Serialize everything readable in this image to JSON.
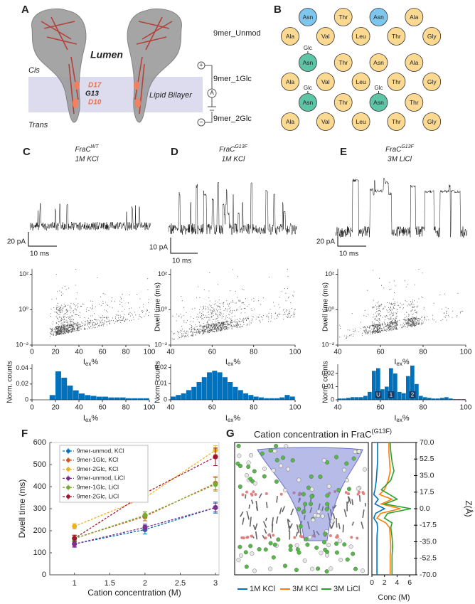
{
  "panel_labels": [
    "A",
    "B",
    "C",
    "D",
    "E",
    "F",
    "G"
  ],
  "panel_a": {
    "lumen": "Lumen",
    "cis": "Cis",
    "trans": "Trans",
    "bilayer": "Lipid Bilayer",
    "d17": "D17",
    "g13": "G13",
    "d10": "D10",
    "plus": "+",
    "ammeter": "A",
    "minus": "−"
  },
  "panel_b": {
    "rows": [
      {
        "label": "9mer_Unmod",
        "residues": [
          {
            "name": "Ala",
            "color": "#fcd991"
          },
          {
            "name": "Asn",
            "color": "#7dc6ee"
          },
          {
            "name": "Val",
            "color": "#fcd991"
          },
          {
            "name": "Thr",
            "color": "#fcd991"
          },
          {
            "name": "Leu",
            "color": "#fcd991"
          },
          {
            "name": "Asn",
            "color": "#7dc6ee"
          },
          {
            "name": "Thr",
            "color": "#fcd991"
          },
          {
            "name": "Ala",
            "color": "#fcd991"
          },
          {
            "name": "Gly",
            "color": "#fcd991"
          }
        ]
      },
      {
        "label": "9mer_1Glc",
        "residues": [
          {
            "name": "Ala",
            "color": "#fcd991"
          },
          {
            "name": "Asn",
            "color": "#5ec4a6",
            "glycan": "Glc"
          },
          {
            "name": "Val",
            "color": "#fcd991"
          },
          {
            "name": "Thr",
            "color": "#fcd991"
          },
          {
            "name": "Leu",
            "color": "#fcd991"
          },
          {
            "name": "Asn",
            "color": "#fcd991"
          },
          {
            "name": "Thr",
            "color": "#fcd991"
          },
          {
            "name": "Ala",
            "color": "#fcd991"
          },
          {
            "name": "Gly",
            "color": "#fcd991"
          }
        ]
      },
      {
        "label": "9mer_2Glc",
        "residues": [
          {
            "name": "Ala",
            "color": "#fcd991"
          },
          {
            "name": "Asn",
            "color": "#5ec4a6",
            "glycan": "Glc"
          },
          {
            "name": "Val",
            "color": "#fcd991"
          },
          {
            "name": "Thr",
            "color": "#fcd991"
          },
          {
            "name": "Leu",
            "color": "#fcd991"
          },
          {
            "name": "Asn",
            "color": "#5ec4a6",
            "glycan": "Glc"
          },
          {
            "name": "Thr",
            "color": "#fcd991"
          },
          {
            "name": "Thr",
            "color": "#fcd991"
          },
          {
            "name": "Gly",
            "color": "#fcd991"
          }
        ]
      }
    ]
  },
  "recordings": [
    {
      "title": "FraC",
      "title_sup": "WT",
      "condition": "1M KCl",
      "scale_current": "20 pA",
      "scale_time": "10 ms",
      "scatter": {
        "log_y": true,
        "xlim": [
          0,
          100
        ],
        "xticks": [
          0,
          20,
          40,
          60,
          80,
          100
        ],
        "ylim": [
          0.01,
          200
        ],
        "yticks": [
          {
            "value": 0.01,
            "label": "10⁻²"
          },
          {
            "value": 1,
            "label": "10⁰"
          },
          {
            "value": 100,
            "label": "10²"
          }
        ],
        "xlabel": {
          "main": "I",
          "sub": "ex",
          "suffix": "%"
        }
      }
    },
    {
      "title": "FraC",
      "title_sup": "G13F",
      "condition": "1M KCl",
      "scale_current": "10 pA",
      "scale_time": "10 ms",
      "scatter": {
        "log_y": true,
        "ylabel": "Dwell time (ms)",
        "xlim": [
          40,
          100
        ],
        "xticks": [
          40,
          60,
          80,
          100
        ],
        "ylim": [
          0.01,
          200
        ],
        "yticks": [
          {
            "value": 0.01,
            "label": "10⁻²"
          },
          {
            "value": 1,
            "label": "10⁰"
          },
          {
            "value": 100,
            "label": "10²"
          }
        ],
        "xlabel": {
          "main": "I",
          "sub": "ex",
          "suffix": "%"
        }
      }
    },
    {
      "title": "FraC",
      "title_sup": "G13F",
      "condition": "3M LiCl",
      "scale_current": "20 pA",
      "scale_time": "10 ms",
      "scatter": {
        "log_y": true,
        "ylabel": "Dwell time (ms)",
        "xlim": [
          40,
          100
        ],
        "xticks": [
          40,
          60,
          80,
          100
        ],
        "ylim": [
          0.01,
          200
        ],
        "yticks": [
          {
            "value": 0.01,
            "label": "10⁻²"
          },
          {
            "value": 1,
            "label": "10⁰"
          },
          {
            "value": 100,
            "label": "10²"
          }
        ],
        "xlabel": {
          "main": "I",
          "sub": "ex",
          "suffix": "%"
        }
      }
    }
  ],
  "chart_data": [
    {
      "type": "histogram",
      "ylabel": "Norm. counts",
      "xlabel": {
        "main": "I",
        "sub": "ex",
        "suffix": "%"
      },
      "color": "#0072bd",
      "bins": [
        0,
        5,
        10,
        15,
        20,
        25,
        30,
        35,
        40,
        45,
        50,
        55,
        60,
        65,
        70,
        75,
        80,
        85,
        90,
        95,
        100
      ],
      "values": [
        0,
        0,
        0,
        0.006,
        0.036,
        0.028,
        0.018,
        0.012,
        0.008,
        0.006,
        0.005,
        0.004,
        0.004,
        0.003,
        0.003,
        0.003,
        0.002,
        0.002,
        0.002,
        0.002
      ],
      "xlim": [
        0,
        100
      ],
      "xticks": [
        0,
        20,
        40,
        60,
        80,
        100
      ],
      "ylim": [
        0,
        0.045
      ],
      "yticks": [
        0,
        0.02,
        0.04
      ]
    },
    {
      "type": "histogram",
      "ylabel": "Norm. counts",
      "xlabel": {
        "main": "I",
        "sub": "ex",
        "suffix": "%"
      },
      "color": "#0072bd",
      "bins": [
        40,
        42.5,
        45,
        47.5,
        50,
        52.5,
        55,
        57.5,
        60,
        62.5,
        65,
        67.5,
        70,
        72.5,
        75,
        77.5,
        80,
        82.5,
        85,
        87.5,
        90,
        92.5,
        95,
        97.5,
        100
      ],
      "values": [
        0.002,
        0.003,
        0.004,
        0.006,
        0.008,
        0.011,
        0.014,
        0.017,
        0.018,
        0.017,
        0.014,
        0.011,
        0.008,
        0.006,
        0.004,
        0.003,
        0.002,
        0.0015,
        0.001,
        0.001,
        0.001,
        0.0015,
        0.003,
        0.002
      ],
      "xlim": [
        40,
        100
      ],
      "xticks": [
        40,
        60,
        80,
        100
      ],
      "ylim": [
        0,
        0.022
      ],
      "yticks": [
        0,
        0.01,
        0.02
      ]
    },
    {
      "type": "histogram",
      "ylabel": "Norm. counts",
      "xlabel": {
        "main": "I",
        "sub": "ex",
        "suffix": "%"
      },
      "color": "#0072bd",
      "bins": [
        40,
        42,
        44,
        46,
        48,
        50,
        52,
        54,
        56,
        58,
        60,
        62,
        64,
        66,
        68,
        70,
        72,
        74,
        76,
        78,
        80,
        82,
        84,
        86,
        88,
        90,
        92,
        94,
        96,
        98,
        100
      ],
      "values": [
        0.001,
        0.001,
        0.0015,
        0.002,
        0.002,
        0.002,
        0.003,
        0.006,
        0.022,
        0.024,
        0.008,
        0.01,
        0.024,
        0.02,
        0.006,
        0.005,
        0.018,
        0.026,
        0.012,
        0.003,
        0.002,
        0.0015,
        0.001,
        0.001,
        0.0015,
        0.002,
        0.001,
        0.0005,
        0.0005,
        0.0005
      ],
      "annotations": [
        "U",
        "1",
        "2"
      ],
      "xlim": [
        40,
        100
      ],
      "xticks": [
        40,
        60,
        80,
        100
      ],
      "ylim": [
        0,
        0.027
      ],
      "yticks": [
        0,
        0.01,
        0.02
      ]
    },
    {
      "type": "line",
      "xlabel": "Cation concentration (M)",
      "ylabel": "Dwell time (ms)",
      "x": [
        1,
        2,
        3
      ],
      "xlim": [
        0.65,
        3.05
      ],
      "xticks": [
        1,
        1.5,
        2,
        2.5,
        3
      ],
      "ylim": [
        0,
        600
      ],
      "yticks": [
        0,
        100,
        200,
        300,
        400,
        500,
        600
      ],
      "series": [
        {
          "name": "9mer-unmod, KCl",
          "color": "#0072bd",
          "values": [
            140,
            205,
            305
          ],
          "errors": [
            15,
            20,
            25
          ]
        },
        {
          "name": "9mer-1Glc, KCl",
          "color": "#d95319",
          "values": [
            165,
            265,
            415
          ],
          "errors": [
            15,
            20,
            30
          ]
        },
        {
          "name": "9mer-2Glc, KCl",
          "color": "#edb120",
          "values": [
            220,
            350,
            565
          ],
          "errors": [
            12,
            20,
            20
          ]
        },
        {
          "name": "9mer-unmod, LiCl",
          "color": "#7e2f8e",
          "values": [
            140,
            215,
            305
          ],
          "errors": [
            12,
            15,
            20
          ]
        },
        {
          "name": "9mer-1Glc, LiCl",
          "color": "#77ac30",
          "values": [
            165,
            270,
            410
          ],
          "errors": [
            12,
            15,
            30
          ]
        },
        {
          "name": "9mer-2Glc, LiCl",
          "color": "#a2142f",
          "values": [
            165,
            370,
            535
          ],
          "errors": [
            15,
            15,
            40
          ]
        }
      ]
    },
    {
      "type": "profile",
      "title": "Cation concentration in FraC",
      "title_sup": "(G13F)",
      "xlabel": "Conc (M)",
      "ylabel": "Z(Å)",
      "y": [
        70,
        60,
        50,
        40,
        30,
        20,
        15,
        10,
        5,
        0,
        -5,
        -10,
        -15,
        -20,
        -30,
        -40,
        -50,
        -60,
        -70
      ],
      "ylim": [
        -70,
        70
      ],
      "yticks": [
        {
          "value": 70,
          "label": "70.0"
        },
        52.5,
        {
          "value": 35,
          "label": "35.0"
        },
        17.5,
        {
          "value": 0,
          "label": "0.0"
        },
        -17.5,
        {
          "value": -35,
          "label": "-35.0"
        },
        -52.5,
        {
          "value": -70,
          "label": "-70.0"
        }
      ],
      "xlim": [
        0,
        7
      ],
      "xticks": [
        0,
        2,
        4,
        6
      ],
      "series": [
        {
          "name": "1M KCl",
          "color": "#0072bd",
          "values": [
            0.9,
            0.9,
            0.9,
            0.8,
            0.7,
            0.5,
            0.3,
            1.0,
            0.5,
            2.0,
            0.6,
            0.3,
            0.8,
            0.9,
            0.8,
            0.8,
            0.8,
            0.8,
            0.8
          ]
        },
        {
          "name": "3M KCl",
          "color": "#ff7f0e",
          "values": [
            2.7,
            2.7,
            2.8,
            2.9,
            2.6,
            2.0,
            1.2,
            3.2,
            1.5,
            4.5,
            1.4,
            0.8,
            2.2,
            2.8,
            2.9,
            3.0,
            2.9,
            2.9,
            2.9
          ]
        },
        {
          "name": "3M LiCl",
          "color": "#2ca02c",
          "values": [
            2.9,
            3.0,
            3.2,
            3.5,
            3.0,
            1.5,
            2.8,
            4.0,
            2.0,
            6.2,
            2.5,
            2.0,
            3.2,
            3.0,
            3.2,
            3.3,
            3.2,
            3.2,
            3.2
          ]
        }
      ]
    }
  ]
}
